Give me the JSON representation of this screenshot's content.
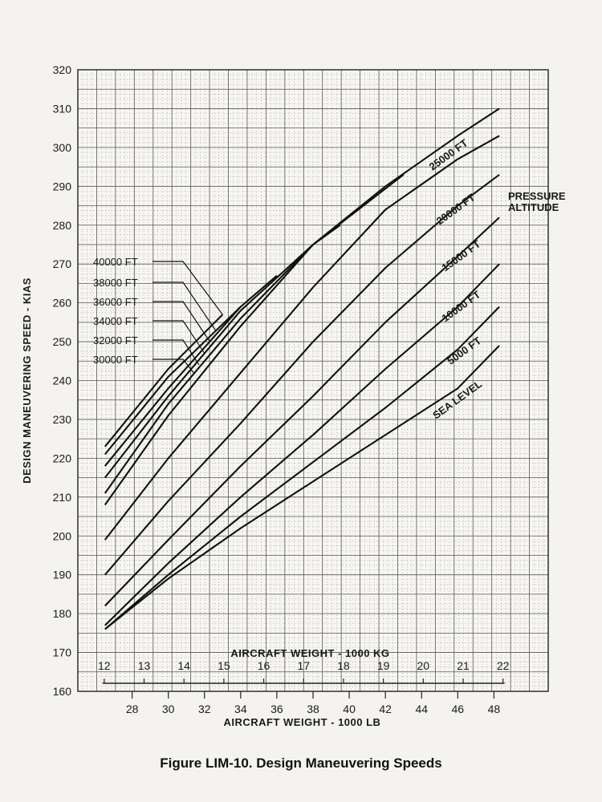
{
  "caption": "Figure LIM-10.   Design Maneuvering Speeds",
  "chart_data": {
    "type": "line",
    "ylabel": "DESIGN MANEUVERING SPEED - KIAS",
    "xlabel": "AIRCRAFT WEIGHT - 1000 LB",
    "x2label": "AIRCRAFT WEIGHT - 1000 KG",
    "legend_title": [
      "PRESSURE",
      "ALTITUDE"
    ],
    "ylim": [
      160,
      320
    ],
    "y_ticks": [
      160,
      170,
      180,
      190,
      200,
      210,
      220,
      230,
      240,
      250,
      260,
      270,
      280,
      290,
      300,
      310,
      320
    ],
    "xlim": [
      25,
      51
    ],
    "x_ticks_lb": [
      28,
      30,
      32,
      34,
      36,
      38,
      40,
      42,
      44,
      46,
      48
    ],
    "x_ticks_kg": [
      12,
      13,
      14,
      15,
      16,
      17,
      18,
      19,
      20,
      21,
      22
    ],
    "grid": true,
    "series": [
      {
        "name": "SEA LEVEL",
        "points": [
          [
            26.5,
            176
          ],
          [
            30,
            189
          ],
          [
            34,
            202
          ],
          [
            38,
            214
          ],
          [
            42,
            226
          ],
          [
            46,
            238
          ],
          [
            48.3,
            249
          ]
        ]
      },
      {
        "name": "5000 FT",
        "points": [
          [
            26.5,
            176
          ],
          [
            30,
            190
          ],
          [
            34,
            205
          ],
          [
            38,
            219
          ],
          [
            42,
            233
          ],
          [
            46,
            248
          ],
          [
            48.3,
            259
          ]
        ]
      },
      {
        "name": "10000 FT",
        "points": [
          [
            26.5,
            177
          ],
          [
            30,
            193
          ],
          [
            34,
            210
          ],
          [
            38,
            226
          ],
          [
            42,
            243
          ],
          [
            46,
            259
          ],
          [
            48.3,
            270
          ]
        ]
      },
      {
        "name": "15000 FT",
        "points": [
          [
            26.5,
            182
          ],
          [
            30,
            199
          ],
          [
            34,
            218
          ],
          [
            38,
            236
          ],
          [
            42,
            255
          ],
          [
            46,
            272
          ],
          [
            48.3,
            282
          ]
        ]
      },
      {
        "name": "20000 FT",
        "points": [
          [
            26.5,
            190
          ],
          [
            30,
            209
          ],
          [
            34,
            229
          ],
          [
            38,
            250
          ],
          [
            42,
            269
          ],
          [
            46,
            285
          ],
          [
            48.3,
            293
          ]
        ]
      },
      {
        "name": "25000 FT",
        "points": [
          [
            26.5,
            199
          ],
          [
            30,
            220
          ],
          [
            34,
            242
          ],
          [
            38,
            264
          ],
          [
            42,
            284
          ],
          [
            46,
            297
          ],
          [
            48.3,
            303
          ]
        ]
      },
      {
        "name": "30000 FT",
        "points": [
          [
            26.5,
            208
          ],
          [
            30,
            231
          ],
          [
            34,
            254
          ],
          [
            38,
            275
          ],
          [
            42,
            290
          ],
          [
            46,
            303
          ],
          [
            48.3,
            310
          ]
        ]
      },
      {
        "name": "32000 FT",
        "points": [
          [
            26.5,
            211
          ],
          [
            30,
            234
          ],
          [
            34,
            256
          ],
          [
            38,
            275
          ],
          [
            43,
            293
          ]
        ]
      },
      {
        "name": "34000 FT",
        "points": [
          [
            26.5,
            215
          ],
          [
            30,
            236
          ],
          [
            34,
            258
          ],
          [
            38,
            275
          ],
          [
            39.5,
            280
          ]
        ]
      },
      {
        "name": "36000 FT",
        "points": [
          [
            26.5,
            218
          ],
          [
            30,
            238
          ],
          [
            34,
            259
          ],
          [
            36,
            267
          ]
        ]
      },
      {
        "name": "38000 FT",
        "points": [
          [
            26.5,
            221
          ],
          [
            30,
            241
          ],
          [
            34,
            259
          ]
        ]
      },
      {
        "name": "40000 FT",
        "points": [
          [
            26.5,
            223
          ],
          [
            30,
            243
          ],
          [
            33,
            257
          ]
        ]
      }
    ],
    "right_labels": [
      "25000 FT",
      "20000 FT",
      "15000 FT",
      "10000 FT",
      "5000 FT",
      "SEA LEVEL"
    ],
    "left_labels": [
      "40000 FT",
      "38000 FT",
      "36000 FT",
      "34000 FT",
      "32000 FT",
      "30000 FT"
    ]
  }
}
